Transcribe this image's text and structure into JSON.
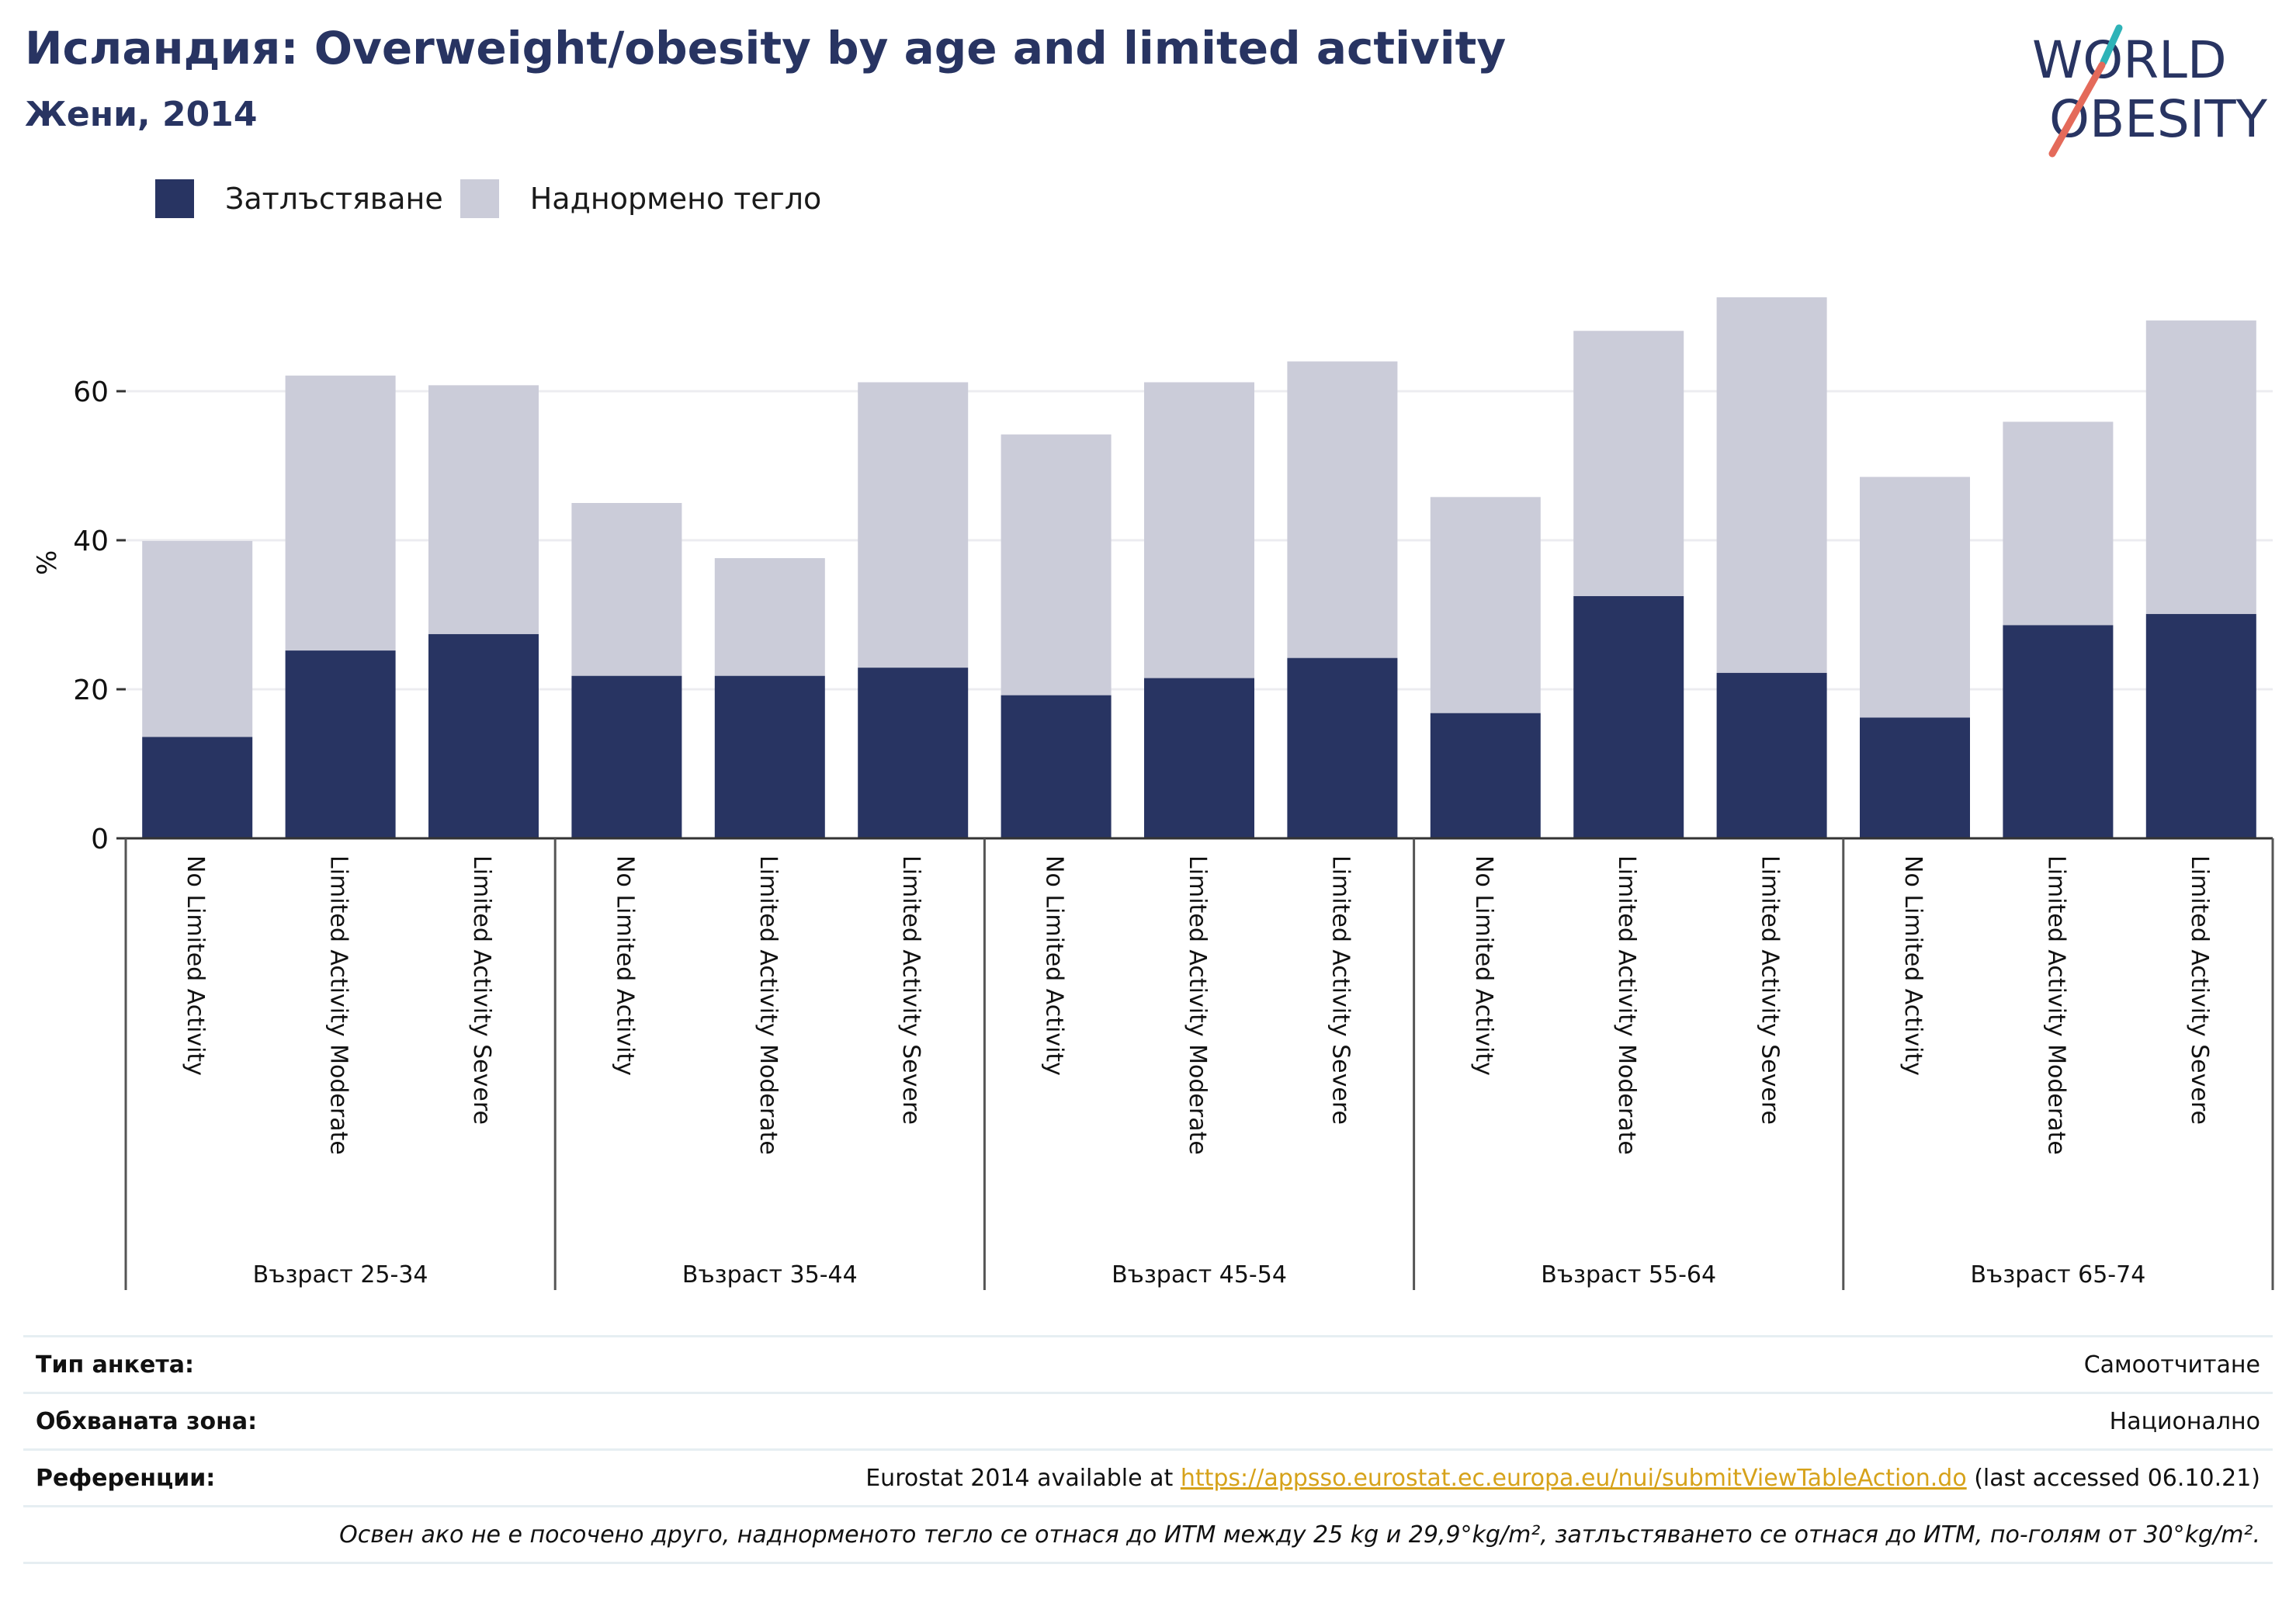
{
  "header": {
    "title": "Исландия: Overweight/obesity by age and limited activity",
    "subtitle": "Жени, 2014"
  },
  "logo": {
    "line1": "WORLD",
    "line2": "OBESITY"
  },
  "colors": {
    "obesity": "#283462",
    "overweight": "#cbccd9",
    "text": "#283462",
    "logo_teal": "#2fb3b8",
    "logo_coral": "#e46a5a",
    "link": "#d6a21a"
  },
  "chart_data": {
    "type": "bar",
    "stacked": true,
    "ylabel": "%",
    "ylim": [
      0,
      80
    ],
    "yticks": [
      0,
      20,
      40,
      60
    ],
    "grid": true,
    "legend_position": "top-left",
    "categories": [
      "No Limited Activity",
      "Limited Activity Moderate",
      "Limited Activity Severe",
      "No Limited Activity",
      "Limited Activity Moderate",
      "Limited Activity Severe",
      "No Limited Activity",
      "Limited Activity Moderate",
      "Limited Activity Severe",
      "No Limited Activity",
      "Limited Activity Moderate",
      "Limited Activity Severe",
      "No Limited Activity",
      "Limited Activity Moderate",
      "Limited Activity Severe"
    ],
    "groups": [
      "Възраст 25-34",
      "Възраст 35-44",
      "Възраст 45-54",
      "Възраст 55-64",
      "Възраст 65-74"
    ],
    "series": [
      {
        "name": "Затлъстяване",
        "values": [
          13.6,
          25.2,
          27.4,
          21.8,
          21.8,
          22.9,
          19.2,
          21.5,
          24.2,
          16.8,
          32.5,
          22.2,
          16.2,
          28.6,
          30.1
        ]
      },
      {
        "name": "Наднормено тегло",
        "values": [
          26.3,
          36.9,
          33.4,
          23.2,
          15.8,
          38.3,
          35.0,
          39.7,
          39.8,
          29.0,
          35.6,
          50.4,
          32.3,
          27.3,
          39.4
        ]
      }
    ]
  },
  "footer": {
    "survey_label": "Тип анкета:",
    "survey_value": "Самоотчитане",
    "area_label": "Обхваната зона:",
    "area_value": "Национално",
    "ref_label": "Референции:",
    "ref_prefix": "Eurostat 2014 available at ",
    "ref_link": "https://appsso.eurostat.ec.europa.eu/nui/submitViewTableAction.do",
    "ref_suffix": " (last accessed 06.10.21)",
    "note": "Освен ако не е посочено друго, наднорменото тегло се отнася до ИТМ между 25 kg и 29,9°kg/m², затлъстяването се отнася до ИТМ, по-голям от 30°kg/m²."
  }
}
